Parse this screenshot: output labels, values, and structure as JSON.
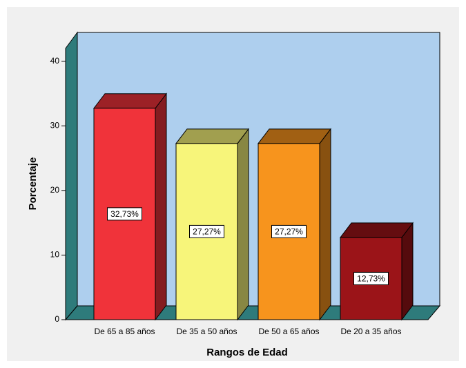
{
  "chart_data": {
    "type": "bar3d",
    "xlabel": "Rangos de Edad",
    "ylabel": "Porcentaje",
    "categories": [
      "De 65 a 85 años",
      "De 35 a 50 años",
      "De 50 a 65 años",
      "De 20 a 35 años"
    ],
    "values": [
      32.73,
      27.27,
      27.27,
      12.73
    ],
    "value_labels": [
      "32,73%",
      "27,27%",
      "27,27%",
      "12,73%"
    ],
    "colors": [
      "#f0333a",
      "#f7f57a",
      "#f7941d",
      "#9b1418"
    ],
    "ylim": [
      0,
      42
    ],
    "yticks": [
      0,
      10,
      20,
      30,
      40
    ]
  }
}
